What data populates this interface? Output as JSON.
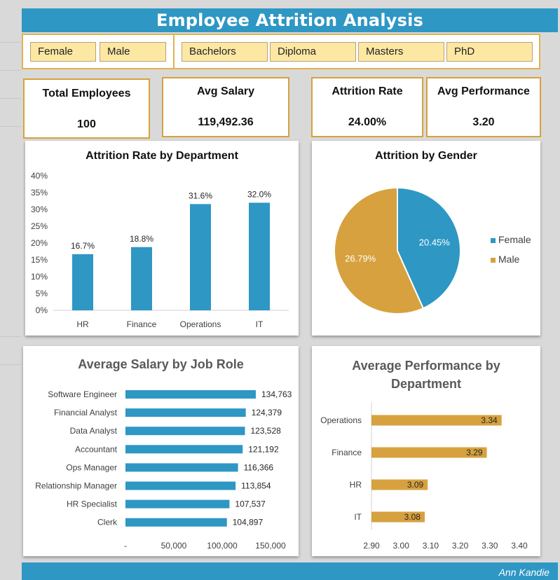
{
  "title": "Employee Attrition Analysis",
  "slicers": {
    "gender": [
      "Female",
      "Male"
    ],
    "education": [
      "Bachelors",
      "Diploma",
      "Masters",
      "PhD"
    ]
  },
  "kpis": {
    "total_employees": {
      "label": "Total Employees",
      "value": "100"
    },
    "avg_salary": {
      "label": "Avg Salary",
      "value": "119,492.36"
    },
    "attrition_rate": {
      "label": "Attrition Rate",
      "value": "24.00%"
    },
    "avg_performance": {
      "label": "Avg Performance",
      "value": "3.20"
    }
  },
  "footer": {
    "author": "Ann Kandie"
  },
  "colors": {
    "blue": "#2e97c4",
    "gold": "#d6a13e"
  },
  "chart_data": [
    {
      "type": "bar",
      "title": "Attrition Rate by Department",
      "categories": [
        "HR",
        "Finance",
        "Operations",
        "IT"
      ],
      "values": [
        16.7,
        18.8,
        31.6,
        32.0
      ],
      "data_labels": [
        "16.7%",
        "18.8%",
        "31.6%",
        "32.0%"
      ],
      "ylim": [
        0,
        40
      ],
      "y_ticks": [
        "0%",
        "5%",
        "10%",
        "15%",
        "20%",
        "25%",
        "30%",
        "35%",
        "40%"
      ],
      "xlabel": "",
      "ylabel": "",
      "grid": false
    },
    {
      "type": "pie",
      "title": "Attrition by Gender",
      "labels": [
        "Female",
        "Male"
      ],
      "values": [
        20.45,
        26.79
      ],
      "data_labels": [
        "20.45%",
        "26.79%"
      ],
      "legend": "right"
    },
    {
      "type": "bar",
      "orientation": "horizontal",
      "title": "Average Salary by Job Role",
      "categories": [
        "Software Engineer",
        "Financial Analyst",
        "Data Analyst",
        "Accountant",
        "Ops Manager",
        "Relationship Manager",
        "HR Specialist",
        "Clerk"
      ],
      "values": [
        134763,
        124379,
        123528,
        121192,
        116366,
        113854,
        107537,
        104897
      ],
      "data_labels": [
        "134,763",
        "124,379",
        "123,528",
        "121,192",
        "116,366",
        "113,854",
        "107,537",
        "104,897"
      ],
      "xlim": [
        0,
        150000
      ],
      "x_ticks": [
        "-",
        "50,000",
        "100,000",
        "150,000"
      ],
      "grid": false
    },
    {
      "type": "bar",
      "orientation": "horizontal",
      "title": "Average  Performance  by Department",
      "categories": [
        "Operations",
        "Finance",
        "HR",
        "IT"
      ],
      "values": [
        3.34,
        3.29,
        3.09,
        3.08
      ],
      "data_labels": [
        "3.34",
        "3.29",
        "3.09",
        "3.08"
      ],
      "xlim": [
        2.9,
        3.4
      ],
      "x_ticks": [
        "2.90",
        "3.00",
        "3.10",
        "3.20",
        "3.30",
        "3.40"
      ],
      "grid": false
    }
  ]
}
